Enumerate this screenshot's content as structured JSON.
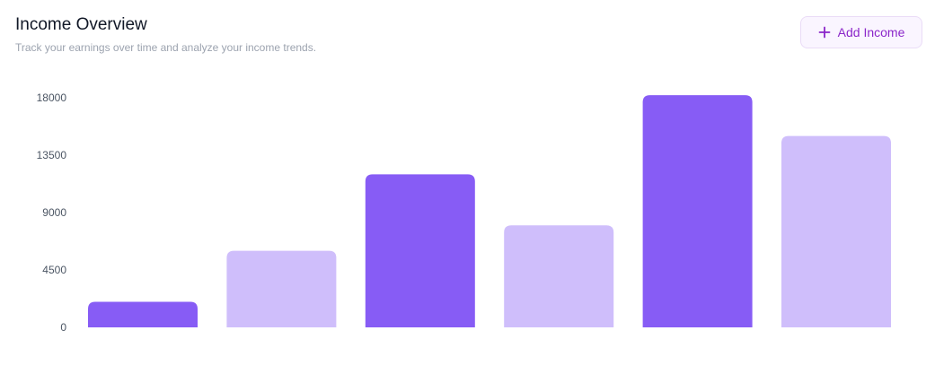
{
  "header": {
    "title": "Income Overview",
    "subtitle": "Track your earnings over time and analyze your income trends."
  },
  "actions": {
    "add_income_label": "Add Income",
    "add_income_icon": "plus-icon"
  },
  "colors": {
    "dark_bar": "#875cf5",
    "light_bar": "#cfbefb",
    "button_text": "#8b26c9",
    "button_bg": "#faf5ff"
  },
  "chart_data": {
    "type": "bar",
    "categories": [
      "",
      "",
      "",
      "",
      "",
      ""
    ],
    "values": [
      2000,
      6000,
      12000,
      8000,
      18200,
      15000
    ],
    "yticks": [
      0,
      4500,
      9000,
      13500,
      18000
    ],
    "ylim": [
      0,
      18000
    ],
    "grid": false,
    "legend": "none",
    "title": "",
    "xlabel": "",
    "ylabel": ""
  }
}
